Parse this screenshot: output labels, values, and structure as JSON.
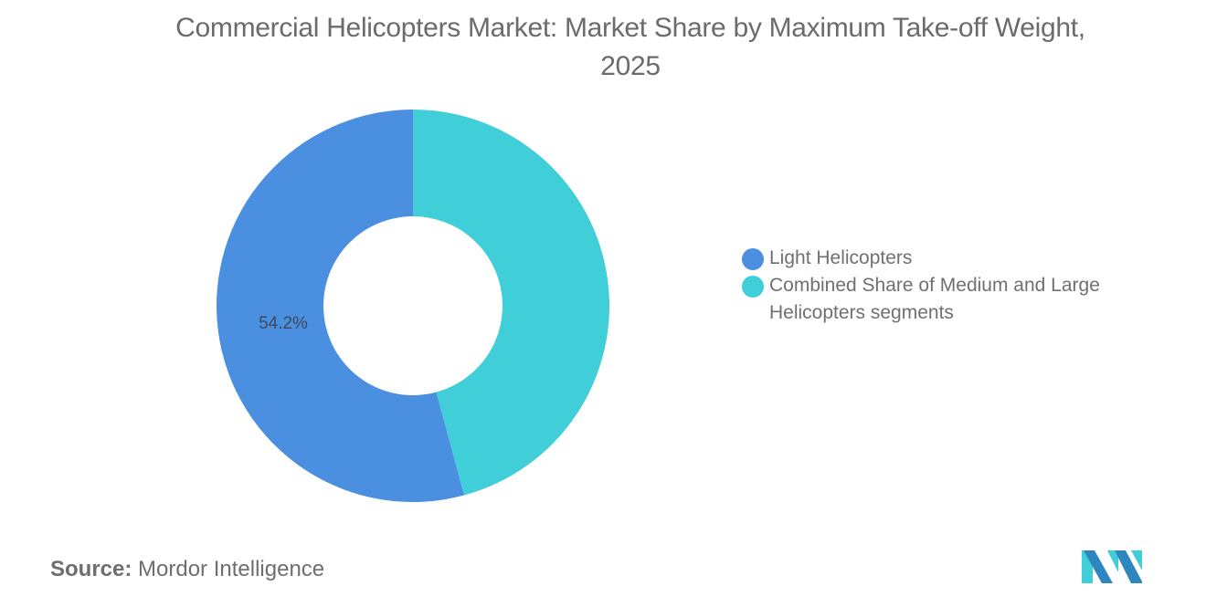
{
  "title": {
    "line1": "Commercial Helicopters Market: Market Share by Maximum Take-off Weight,",
    "line2": "2025"
  },
  "legend": {
    "items": [
      {
        "label": "Light Helicopters",
        "color": "#4A8FE0"
      },
      {
        "label": "Combined Share of Medium and Large Helicopters segments",
        "color": "#40CED8"
      }
    ]
  },
  "data_labels": {
    "light": "54.2%"
  },
  "source": {
    "key": "Source:",
    "value": "Mordor Intelligence"
  },
  "logo": {
    "name": "mordor-intelligence-logo",
    "colors": [
      "#2E86C1",
      "#40CED8"
    ]
  },
  "chart_data": {
    "type": "pie",
    "subtype": "donut",
    "title": "Commercial Helicopters Market: Market Share by Maximum Take-off Weight, 2025",
    "categories": [
      "Light Helicopters",
      "Combined Share of Medium and Large Helicopters segments"
    ],
    "values": [
      54.2,
      45.8
    ],
    "unit": "%",
    "colors": [
      "#4A8FE0",
      "#40CED8"
    ],
    "data_labels_shown": [
      "54.2%",
      null
    ],
    "start_angle_deg": 0,
    "direction": "counterclockwise from top for Light; Medium/Large clockwise from top",
    "legend_position": "right"
  }
}
